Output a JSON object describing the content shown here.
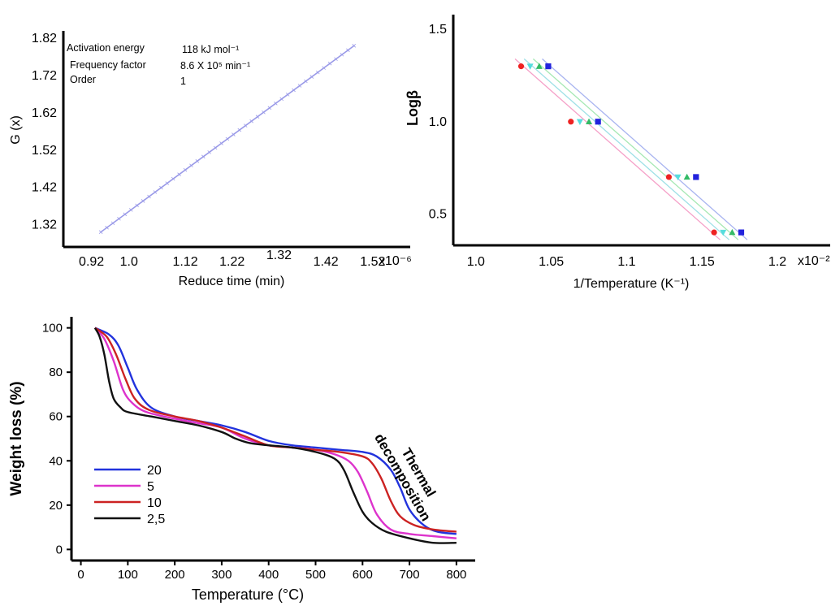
{
  "chart_data": [
    {
      "type": "line",
      "ylabel": "G (x)",
      "xlabel": "Reduce time  (min)",
      "x_ticks": [
        "0.92",
        "1.0",
        "1.12",
        "1.22",
        "1.32",
        "1.42",
        "1.52"
      ],
      "x_multiplier": "x10⁻⁶",
      "y_ticks": [
        "1.32",
        "1.42",
        "1.52",
        "1.62",
        "1.72",
        "1.82"
      ],
      "xlim": [
        0.86,
        1.6
      ],
      "ylim": [
        1.26,
        1.84
      ],
      "annotations": [
        {
          "label": "Activation energy",
          "value": "118 kJ mol⁻¹"
        },
        {
          "label": "Frequency factor",
          "value": "8.6 X 10⁵ min⁻¹"
        },
        {
          "label": "Order",
          "value": "1"
        }
      ],
      "series": [
        {
          "color": "#9a9ae8",
          "marker": "x",
          "x": [
            0.94,
            1.48
          ],
          "y": [
            1.3,
            1.8
          ]
        }
      ]
    },
    {
      "type": "scatter",
      "ylabel": "Logβ",
      "xlabel": "1/Temperature (K⁻¹)",
      "x_ticks": [
        "1.0",
        "1.05",
        "1.1",
        "1.15",
        "1.2"
      ],
      "x_multiplier": "x10⁻²",
      "y_ticks": [
        "0.5",
        "1.0",
        "1.5"
      ],
      "xlim": [
        0.985,
        1.235
      ],
      "ylim": [
        0.33,
        1.58
      ],
      "series": [
        {
          "color": "#ee2222",
          "marker": "circle",
          "x": [
            1.03,
            1.063,
            1.128,
            1.158
          ],
          "y": [
            1.3,
            1.0,
            0.7,
            0.4
          ]
        },
        {
          "color": "#55dddd",
          "marker": "triangle-down",
          "x": [
            1.036,
            1.069,
            1.134,
            1.164
          ],
          "y": [
            1.3,
            1.0,
            0.7,
            0.4
          ]
        },
        {
          "color": "#33bb66",
          "marker": "triangle-up",
          "x": [
            1.042,
            1.075,
            1.14,
            1.17
          ],
          "y": [
            1.3,
            1.0,
            0.7,
            0.4
          ]
        },
        {
          "color": "#2222dd",
          "marker": "square",
          "x": [
            1.048,
            1.081,
            1.146,
            1.176
          ],
          "y": [
            1.3,
            1.0,
            0.7,
            0.4
          ]
        }
      ]
    },
    {
      "type": "line",
      "ylabel": "Weight loss   (%)",
      "xlabel": "Temperature (°C)",
      "x_ticks": [
        0,
        100,
        200,
        300,
        400,
        500,
        600,
        700,
        800
      ],
      "y_ticks": [
        0,
        20,
        40,
        60,
        80,
        100
      ],
      "xlim": [
        -20,
        840
      ],
      "ylim": [
        -5,
        105
      ],
      "annotation": "Thermal\ndecomposition",
      "legend": "left",
      "series": [
        {
          "name": "20",
          "color": "#2233dd",
          "x": [
            30,
            60,
            80,
            100,
            120,
            150,
            200,
            250,
            300,
            350,
            400,
            450,
            500,
            550,
            600,
            630,
            660,
            680,
            700,
            730,
            760,
            800
          ],
          "y": [
            100,
            97,
            92,
            82,
            72,
            64,
            60,
            58,
            56,
            53,
            49,
            47,
            46,
            45,
            44,
            42,
            36,
            28,
            18,
            11,
            8,
            7
          ]
        },
        {
          "name": "5",
          "color": "#dd33cc",
          "x": [
            30,
            50,
            70,
            90,
            110,
            140,
            200,
            250,
            300,
            350,
            400,
            450,
            500,
            540,
            570,
            590,
            610,
            630,
            660,
            700,
            750,
            800
          ],
          "y": [
            100,
            95,
            85,
            72,
            66,
            62,
            59,
            57,
            55,
            50,
            47,
            46,
            45,
            43,
            40,
            35,
            26,
            16,
            9,
            7,
            6,
            5
          ]
        },
        {
          "name": "10",
          "color": "#cc2222",
          "x": [
            30,
            55,
            75,
            95,
            115,
            145,
            200,
            250,
            300,
            350,
            400,
            450,
            500,
            550,
            600,
            620,
            640,
            660,
            680,
            710,
            750,
            800
          ],
          "y": [
            100,
            96,
            88,
            77,
            68,
            63,
            60,
            58,
            55,
            51,
            47,
            46,
            45,
            44,
            42,
            39,
            32,
            22,
            15,
            11,
            9,
            8
          ]
        },
        {
          "name": "2,5",
          "color": "#111111",
          "x": [
            30,
            40,
            50,
            60,
            70,
            85,
            100,
            150,
            200,
            250,
            300,
            330,
            360,
            400,
            450,
            500,
            540,
            560,
            580,
            600,
            620,
            650,
            700,
            750,
            800
          ],
          "y": [
            100,
            96,
            88,
            76,
            68,
            64,
            62,
            60,
            58,
            56,
            53,
            50,
            48,
            47,
            46,
            44,
            41,
            36,
            26,
            17,
            12,
            8,
            5,
            3,
            3
          ]
        }
      ]
    }
  ]
}
